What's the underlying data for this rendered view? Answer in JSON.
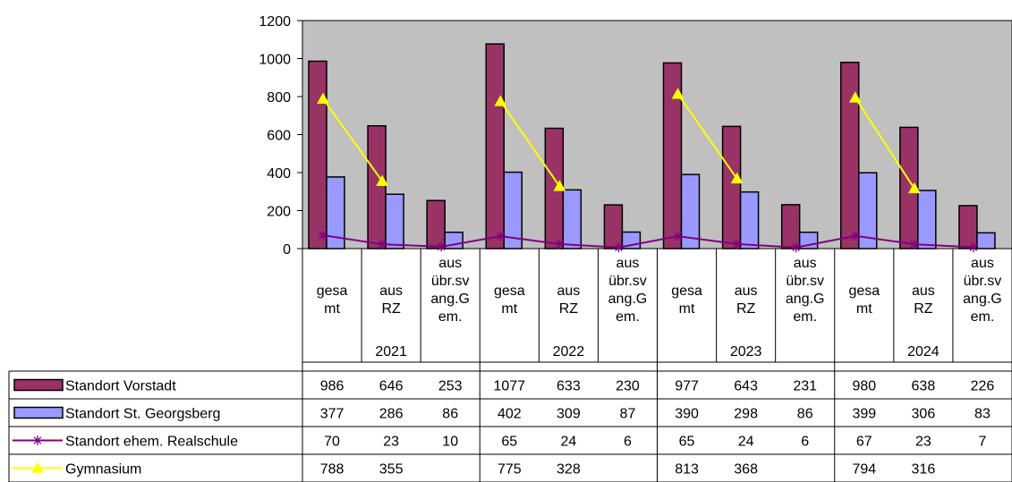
{
  "chart_data": {
    "type": "bar",
    "ylim": [
      0,
      1200
    ],
    "yticks": [
      0,
      200,
      400,
      600,
      800,
      1000,
      1200
    ],
    "grid": false,
    "plot_background": "#C0C0C0",
    "years": [
      "2021",
      "2022",
      "2023",
      "2024"
    ],
    "subcategories": [
      [
        "gesa",
        "mt"
      ],
      [
        "aus",
        "RZ"
      ],
      [
        "aus",
        "übr.sv",
        "ang.G",
        "em."
      ]
    ],
    "series": [
      {
        "name": "Standort Vorstadt",
        "kind": "bar",
        "color": "#993366",
        "values": [
          986,
          646,
          253,
          1077,
          633,
          230,
          977,
          643,
          231,
          980,
          638,
          226
        ]
      },
      {
        "name": "Standort St. Georgsberg",
        "kind": "bar",
        "color": "#9999FF",
        "values": [
          377,
          286,
          86,
          402,
          309,
          87,
          390,
          298,
          86,
          399,
          306,
          83
        ]
      },
      {
        "name": "Standort ehem. Realschule",
        "kind": "line",
        "color": "#800080",
        "marker": "star",
        "values": [
          70,
          23,
          10,
          65,
          24,
          6,
          65,
          24,
          6,
          67,
          23,
          7
        ]
      },
      {
        "name": "Gymnasium",
        "kind": "line",
        "color": "#FFFF00",
        "marker": "triangle",
        "values": [
          788,
          355,
          null,
          775,
          328,
          null,
          813,
          368,
          null,
          794,
          316,
          null
        ]
      }
    ]
  }
}
